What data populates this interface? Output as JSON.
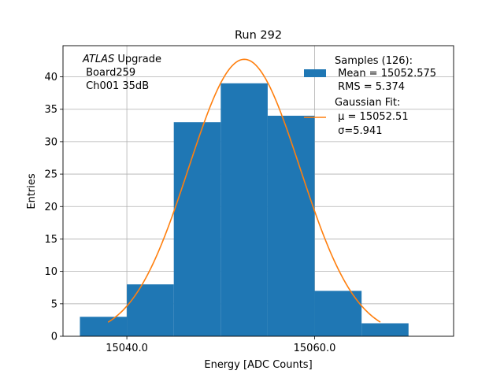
{
  "chart_data": {
    "type": "bar",
    "title": "Run 292",
    "xlabel": "Energy [ADC Counts]",
    "ylabel": "Entries",
    "xlim": [
      15033.2,
      15074.8
    ],
    "ylim": [
      0,
      44.8
    ],
    "grid": true,
    "bins": [
      {
        "x0": 15035,
        "x1": 15040,
        "count": 3
      },
      {
        "x0": 15040,
        "x1": 15045,
        "count": 8
      },
      {
        "x0": 15045,
        "x1": 15050,
        "count": 33
      },
      {
        "x0": 15050,
        "x1": 15055,
        "count": 39
      },
      {
        "x0": 15055,
        "x1": 15060,
        "count": 34
      },
      {
        "x0": 15060,
        "x1": 15065,
        "count": 7
      },
      {
        "x0": 15065,
        "x1": 15070,
        "count": 2
      }
    ],
    "x_ticks": [
      {
        "value": 15040,
        "label": "15040.0"
      },
      {
        "value": 15060,
        "label": "15060.0"
      }
    ],
    "y_ticks": [
      {
        "value": 0,
        "label": "0"
      },
      {
        "value": 5,
        "label": "5"
      },
      {
        "value": 10,
        "label": "10"
      },
      {
        "value": 15,
        "label": "15"
      },
      {
        "value": 20,
        "label": "20"
      },
      {
        "value": 25,
        "label": "25"
      },
      {
        "value": 30,
        "label": "30"
      },
      {
        "value": 35,
        "label": "35"
      },
      {
        "value": 40,
        "label": "40"
      }
    ],
    "fit": {
      "mu": 15052.51,
      "sigma": 5.941,
      "amplitude": 42.7,
      "x_range": [
        15038,
        15067
      ]
    },
    "annotation": {
      "line1_italic": "ATLAS",
      "line1_rest": " Upgrade",
      "line2": " Board259",
      "line3": " Ch001 35dB"
    },
    "legend": {
      "position": "top-right",
      "entries": [
        {
          "lines": [
            "Samples (126):",
            " Mean = 15052.575",
            " RMS = 5.374"
          ]
        },
        {
          "lines": [
            "Gaussian Fit:",
            " μ = 15052.51",
            " σ=5.941"
          ]
        }
      ]
    },
    "colors": {
      "bars": "#1f77b4",
      "fit": "#ff7f0e",
      "grid": "#b0b0b0"
    }
  }
}
